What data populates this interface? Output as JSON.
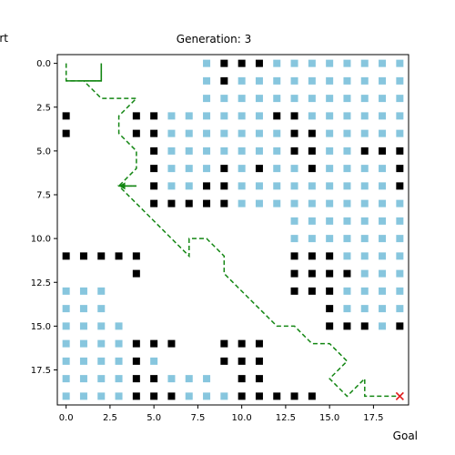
{
  "chart_data": {
    "type": "scatter",
    "title": "Generation: 3",
    "labels": {
      "start": "Start",
      "goal": "Goal"
    },
    "xlim": [
      -0.5,
      19.5
    ],
    "ylim": [
      19.5,
      -0.5
    ],
    "xticks": [
      0.0,
      2.5,
      5.0,
      7.5,
      10.0,
      12.5,
      15.0,
      17.5
    ],
    "xtick_labels": [
      "0.0",
      "2.5",
      "5.0",
      "7.5",
      "10.0",
      "12.5",
      "15.0",
      "17.5"
    ],
    "yticks": [
      0.0,
      2.5,
      5.0,
      7.5,
      10.0,
      12.5,
      15.0,
      17.5
    ],
    "ytick_labels": [
      "0.0",
      "2.5",
      "5.0",
      "7.5",
      "10.0",
      "12.5",
      "15.0",
      "17.5"
    ],
    "colors": {
      "obstacle": "#000000",
      "visited": "#87c6de",
      "path": "#138613",
      "goal_marker": "#e02020"
    },
    "obstacles": [
      [
        9,
        0
      ],
      [
        10,
        0
      ],
      [
        11,
        0
      ],
      [
        9,
        1
      ],
      [
        0,
        3
      ],
      [
        4,
        3
      ],
      [
        5,
        3
      ],
      [
        12,
        3
      ],
      [
        13,
        3
      ],
      [
        0,
        4
      ],
      [
        4,
        4
      ],
      [
        5,
        4
      ],
      [
        13,
        4
      ],
      [
        14,
        4
      ],
      [
        5,
        5
      ],
      [
        13,
        5
      ],
      [
        14,
        5
      ],
      [
        17,
        5
      ],
      [
        18,
        5
      ],
      [
        19,
        5
      ],
      [
        5,
        6
      ],
      [
        9,
        6
      ],
      [
        11,
        6
      ],
      [
        14,
        6
      ],
      [
        19,
        6
      ],
      [
        5,
        7
      ],
      [
        8,
        7
      ],
      [
        9,
        7
      ],
      [
        19,
        7
      ],
      [
        5,
        8
      ],
      [
        6,
        8
      ],
      [
        7,
        8
      ],
      [
        8,
        8
      ],
      [
        9,
        8
      ],
      [
        0,
        11
      ],
      [
        1,
        11
      ],
      [
        2,
        11
      ],
      [
        3,
        11
      ],
      [
        4,
        11
      ],
      [
        13,
        11
      ],
      [
        14,
        11
      ],
      [
        15,
        11
      ],
      [
        4,
        12
      ],
      [
        13,
        12
      ],
      [
        14,
        12
      ],
      [
        15,
        12
      ],
      [
        16,
        12
      ],
      [
        13,
        13
      ],
      [
        14,
        13
      ],
      [
        15,
        13
      ],
      [
        15,
        14
      ],
      [
        15,
        15
      ],
      [
        16,
        15
      ],
      [
        17,
        15
      ],
      [
        19,
        15
      ],
      [
        4,
        16
      ],
      [
        5,
        16
      ],
      [
        6,
        16
      ],
      [
        9,
        16
      ],
      [
        10,
        16
      ],
      [
        11,
        16
      ],
      [
        4,
        17
      ],
      [
        9,
        17
      ],
      [
        10,
        17
      ],
      [
        11,
        17
      ],
      [
        4,
        18
      ],
      [
        5,
        18
      ],
      [
        10,
        18
      ],
      [
        11,
        18
      ],
      [
        4,
        19
      ],
      [
        5,
        19
      ],
      [
        6,
        19
      ],
      [
        10,
        19
      ],
      [
        11,
        19
      ],
      [
        12,
        19
      ],
      [
        13,
        19
      ],
      [
        14,
        19
      ]
    ],
    "visited": [
      [
        8,
        0
      ],
      [
        12,
        0
      ],
      [
        13,
        0
      ],
      [
        14,
        0
      ],
      [
        15,
        0
      ],
      [
        16,
        0
      ],
      [
        17,
        0
      ],
      [
        18,
        0
      ],
      [
        19,
        0
      ],
      [
        8,
        1
      ],
      [
        10,
        1
      ],
      [
        11,
        1
      ],
      [
        12,
        1
      ],
      [
        13,
        1
      ],
      [
        14,
        1
      ],
      [
        15,
        1
      ],
      [
        16,
        1
      ],
      [
        17,
        1
      ],
      [
        18,
        1
      ],
      [
        19,
        1
      ],
      [
        8,
        2
      ],
      [
        9,
        2
      ],
      [
        10,
        2
      ],
      [
        11,
        2
      ],
      [
        12,
        2
      ],
      [
        13,
        2
      ],
      [
        14,
        2
      ],
      [
        15,
        2
      ],
      [
        16,
        2
      ],
      [
        17,
        2
      ],
      [
        18,
        2
      ],
      [
        19,
        2
      ],
      [
        6,
        3
      ],
      [
        7,
        3
      ],
      [
        8,
        3
      ],
      [
        9,
        3
      ],
      [
        10,
        3
      ],
      [
        11,
        3
      ],
      [
        14,
        3
      ],
      [
        15,
        3
      ],
      [
        16,
        3
      ],
      [
        17,
        3
      ],
      [
        18,
        3
      ],
      [
        19,
        3
      ],
      [
        6,
        4
      ],
      [
        7,
        4
      ],
      [
        8,
        4
      ],
      [
        9,
        4
      ],
      [
        10,
        4
      ],
      [
        11,
        4
      ],
      [
        12,
        4
      ],
      [
        15,
        4
      ],
      [
        16,
        4
      ],
      [
        17,
        4
      ],
      [
        18,
        4
      ],
      [
        19,
        4
      ],
      [
        6,
        5
      ],
      [
        7,
        5
      ],
      [
        8,
        5
      ],
      [
        9,
        5
      ],
      [
        10,
        5
      ],
      [
        11,
        5
      ],
      [
        12,
        5
      ],
      [
        15,
        5
      ],
      [
        16,
        5
      ],
      [
        6,
        6
      ],
      [
        7,
        6
      ],
      [
        8,
        6
      ],
      [
        10,
        6
      ],
      [
        12,
        6
      ],
      [
        13,
        6
      ],
      [
        15,
        6
      ],
      [
        16,
        6
      ],
      [
        17,
        6
      ],
      [
        18,
        6
      ],
      [
        6,
        7
      ],
      [
        7,
        7
      ],
      [
        10,
        7
      ],
      [
        11,
        7
      ],
      [
        12,
        7
      ],
      [
        13,
        7
      ],
      [
        14,
        7
      ],
      [
        15,
        7
      ],
      [
        16,
        7
      ],
      [
        17,
        7
      ],
      [
        18,
        7
      ],
      [
        10,
        8
      ],
      [
        11,
        8
      ],
      [
        12,
        8
      ],
      [
        13,
        8
      ],
      [
        14,
        8
      ],
      [
        15,
        8
      ],
      [
        16,
        8
      ],
      [
        17,
        8
      ],
      [
        18,
        8
      ],
      [
        19,
        8
      ],
      [
        13,
        9
      ],
      [
        14,
        9
      ],
      [
        15,
        9
      ],
      [
        16,
        9
      ],
      [
        17,
        9
      ],
      [
        18,
        9
      ],
      [
        19,
        9
      ],
      [
        13,
        10
      ],
      [
        14,
        10
      ],
      [
        15,
        10
      ],
      [
        16,
        10
      ],
      [
        17,
        10
      ],
      [
        18,
        10
      ],
      [
        19,
        10
      ],
      [
        16,
        11
      ],
      [
        17,
        11
      ],
      [
        18,
        11
      ],
      [
        19,
        11
      ],
      [
        17,
        12
      ],
      [
        18,
        12
      ],
      [
        19,
        12
      ],
      [
        0,
        13
      ],
      [
        1,
        13
      ],
      [
        2,
        13
      ],
      [
        16,
        13
      ],
      [
        17,
        13
      ],
      [
        18,
        13
      ],
      [
        19,
        13
      ],
      [
        0,
        14
      ],
      [
        1,
        14
      ],
      [
        2,
        14
      ],
      [
        16,
        14
      ],
      [
        17,
        14
      ],
      [
        18,
        14
      ],
      [
        19,
        14
      ],
      [
        0,
        15
      ],
      [
        1,
        15
      ],
      [
        2,
        15
      ],
      [
        3,
        15
      ],
      [
        18,
        15
      ],
      [
        0,
        16
      ],
      [
        1,
        16
      ],
      [
        2,
        16
      ],
      [
        3,
        16
      ],
      [
        0,
        17
      ],
      [
        1,
        17
      ],
      [
        2,
        17
      ],
      [
        3,
        17
      ],
      [
        5,
        17
      ],
      [
        0,
        18
      ],
      [
        1,
        18
      ],
      [
        2,
        18
      ],
      [
        3,
        18
      ],
      [
        6,
        18
      ],
      [
        7,
        18
      ],
      [
        8,
        18
      ],
      [
        0,
        19
      ],
      [
        1,
        19
      ],
      [
        2,
        19
      ],
      [
        3,
        19
      ],
      [
        7,
        19
      ],
      [
        8,
        19
      ],
      [
        9,
        19
      ]
    ],
    "path": [
      [
        0,
        0
      ],
      [
        0,
        1
      ],
      [
        1,
        1
      ],
      [
        2,
        1
      ],
      [
        2,
        0
      ],
      [
        2,
        1
      ],
      [
        1,
        1
      ],
      [
        2,
        2
      ],
      [
        3,
        2
      ],
      [
        4,
        2
      ],
      [
        3,
        3
      ],
      [
        3,
        4
      ],
      [
        4,
        5
      ],
      [
        4,
        6
      ],
      [
        3,
        7
      ],
      [
        4,
        7
      ],
      [
        3,
        7
      ],
      [
        4,
        8
      ],
      [
        5,
        9
      ],
      [
        6,
        10
      ],
      [
        7,
        11
      ],
      [
        7,
        10
      ],
      [
        8,
        10
      ],
      [
        9,
        11
      ],
      [
        9,
        12
      ],
      [
        10,
        13
      ],
      [
        11,
        14
      ],
      [
        12,
        15
      ],
      [
        13,
        15
      ],
      [
        14,
        16
      ],
      [
        15,
        16
      ],
      [
        16,
        17
      ],
      [
        15,
        18
      ],
      [
        16,
        19
      ],
      [
        17,
        18
      ],
      [
        17,
        19
      ],
      [
        18,
        19
      ],
      [
        19,
        19
      ]
    ],
    "goal": [
      19,
      19
    ]
  }
}
